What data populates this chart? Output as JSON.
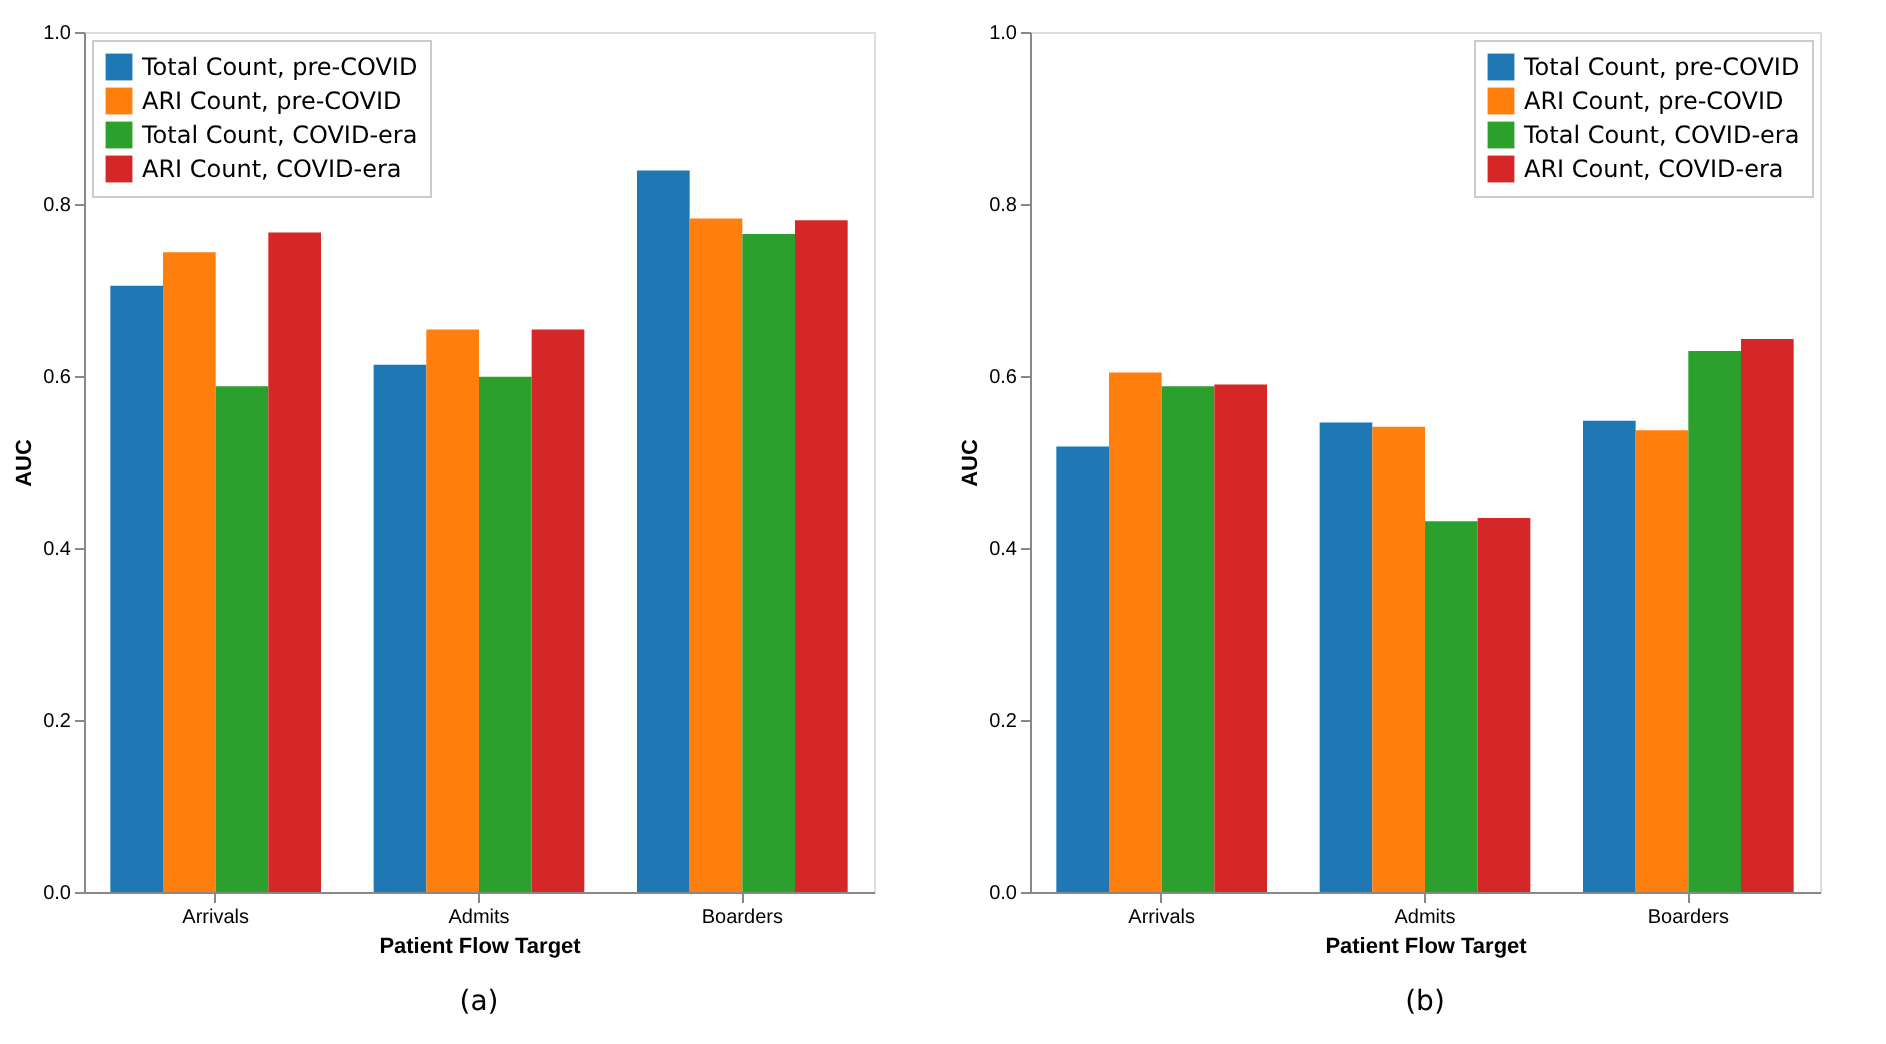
{
  "chart_data": [
    {
      "type": "bar",
      "categories": [
        "Arrivals",
        "Admits",
        "Boarders"
      ],
      "xlabel": "Patient Flow Target",
      "ylabel": "AUC",
      "ylim": [
        0,
        1
      ],
      "yticks": [
        {
          "value": 0,
          "label": "0.0"
        },
        {
          "value": 0.2,
          "label": "0.2"
        },
        {
          "value": 0.4,
          "label": "0.4"
        },
        {
          "value": 0.6,
          "label": "0.6"
        },
        {
          "value": 0.8,
          "label": "0.8"
        },
        {
          "value": 1,
          "label": "1.0"
        }
      ],
      "grid": false,
      "legend": "top left",
      "annotations": [
        "(a)"
      ],
      "series": [
        {
          "name": "Total Count, pre-COVID",
          "color": "#1f77b4",
          "values": [
            0.705,
            0.613,
            0.839
          ]
        },
        {
          "name": "ARI Count, pre-COVID",
          "color": "#ff7f0e",
          "values": [
            0.744,
            0.654,
            0.783
          ]
        },
        {
          "name": "Total Count, COVID-era",
          "color": "#2ca02c",
          "values": [
            0.588,
            0.599,
            0.765
          ]
        },
        {
          "name": "ARI Count, COVID-era",
          "color": "#d62728",
          "values": [
            0.767,
            0.654,
            0.781
          ]
        }
      ]
    },
    {
      "type": "bar",
      "categories": [
        "Arrivals",
        "Admits",
        "Boarders"
      ],
      "xlabel": "Patient Flow Target",
      "ylabel": "AUC",
      "ylim": [
        0,
        1
      ],
      "yticks": [
        {
          "value": 0,
          "label": "0.0"
        },
        {
          "value": 0.2,
          "label": "0.2"
        },
        {
          "value": 0.4,
          "label": "0.4"
        },
        {
          "value": 0.6,
          "label": "0.6"
        },
        {
          "value": 0.8,
          "label": "0.8"
        },
        {
          "value": 1,
          "label": "1.0"
        }
      ],
      "grid": false,
      "legend": "top right",
      "annotations": [
        "(b)"
      ],
      "series": [
        {
          "name": "Total Count, pre-COVID",
          "color": "#1f77b4",
          "values": [
            0.518,
            0.546,
            0.548
          ]
        },
        {
          "name": "ARI Count, pre-COVID",
          "color": "#ff7f0e",
          "values": [
            0.604,
            0.541,
            0.537
          ]
        },
        {
          "name": "Total Count, COVID-era",
          "color": "#2ca02c",
          "values": [
            0.588,
            0.431,
            0.629
          ]
        },
        {
          "name": "ARI Count, COVID-era",
          "color": "#d62728",
          "values": [
            0.59,
            0.435,
            0.643
          ]
        }
      ]
    }
  ]
}
